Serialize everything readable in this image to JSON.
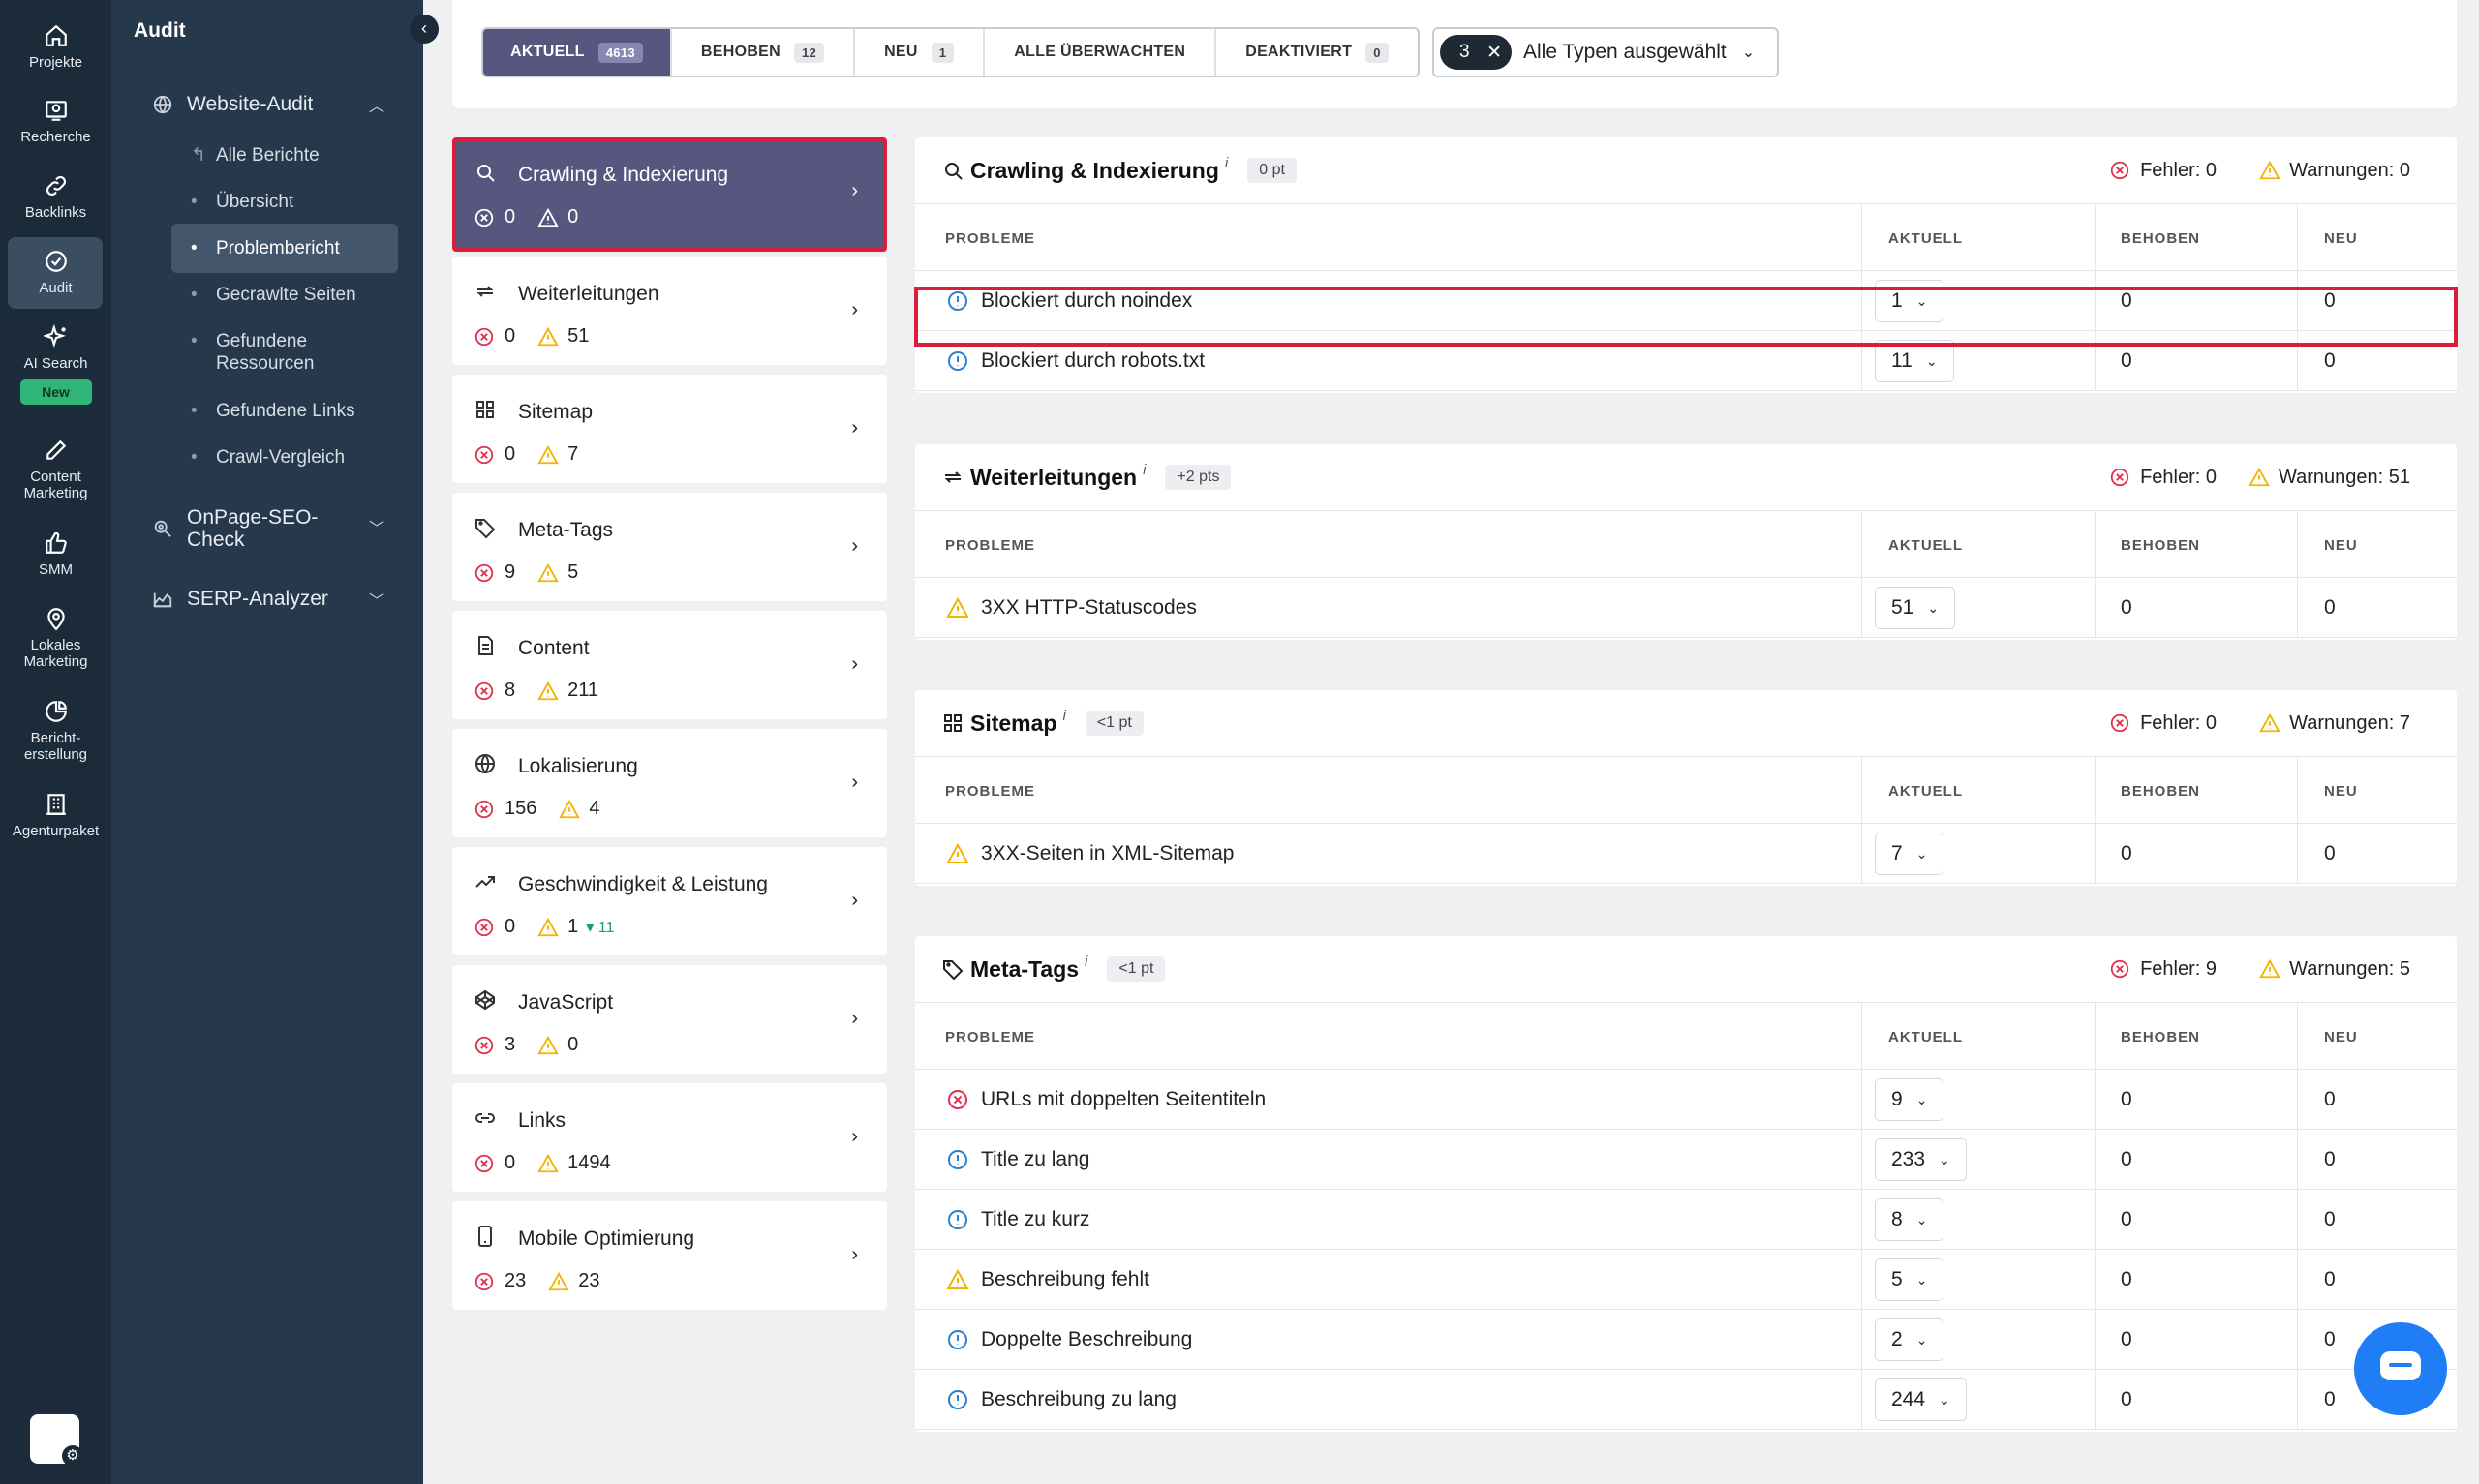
{
  "rail": {
    "items": [
      {
        "label": "Projekte",
        "icon": "home-icon"
      },
      {
        "label": "Recherche",
        "icon": "research-icon"
      },
      {
        "label": "Backlinks",
        "icon": "link-icon"
      },
      {
        "label": "Audit",
        "icon": "check-circle-icon"
      },
      {
        "label": "AI Search",
        "icon": "sparkle-icon"
      },
      {
        "label": "Content",
        "label2": "Marketing",
        "icon": "edit-icon"
      },
      {
        "label": "SMM",
        "icon": "thumbs-up-icon"
      },
      {
        "label": "Lokales",
        "label2": "Marketing",
        "icon": "location-pin-icon"
      },
      {
        "label": "Bericht-",
        "label2": "erstellung",
        "icon": "pie-chart-icon"
      },
      {
        "label": "Agenturpaket",
        "icon": "building-icon"
      }
    ],
    "new_badge": "New",
    "active": "Audit"
  },
  "sidebar": {
    "title": "Audit",
    "website_audit": "Website-Audit",
    "items": [
      {
        "label": "Alle Berichte",
        "bullet": "↰"
      },
      {
        "label": "Übersicht",
        "bullet": "•"
      },
      {
        "label": "Problembericht",
        "bullet": "•"
      },
      {
        "label": "Gecrawlte Seiten",
        "bullet": "•"
      },
      {
        "label": "Gefundene",
        "label2": "Ressourcen",
        "bullet": "•"
      },
      {
        "label": "Gefundene Links",
        "bullet": "•"
      },
      {
        "label": "Crawl-Vergleich",
        "bullet": "•"
      }
    ],
    "onpage": "OnPage-SEO-",
    "onpage2": "Check",
    "serp": "SERP-Analyzer"
  },
  "tabs": [
    {
      "label": "AKTUELL",
      "count": "4613"
    },
    {
      "label": "BEHOBEN",
      "count": "12"
    },
    {
      "label": "NEU",
      "count": "1"
    },
    {
      "label": "ALLE ÜBERWACHTEN",
      "count": ""
    },
    {
      "label": "DEAKTIVIERT",
      "count": "0"
    }
  ],
  "type_filter": {
    "count": "3",
    "clear": "✕",
    "label": "Alle Typen ausgewählt"
  },
  "categories": [
    {
      "name": "Crawling & Indexierung",
      "errors": "0",
      "warnings": "0",
      "icon": "search-icon"
    },
    {
      "name": "Weiterleitungen",
      "errors": "0",
      "warnings": "51",
      "icon": "redirect-icon"
    },
    {
      "name": "Sitemap",
      "errors": "0",
      "warnings": "7",
      "icon": "grid-icon"
    },
    {
      "name": "Meta-Tags",
      "errors": "9",
      "warnings": "5",
      "icon": "tag-icon"
    },
    {
      "name": "Content",
      "errors": "8",
      "warnings": "211",
      "icon": "document-icon"
    },
    {
      "name": "Lokalisierung",
      "errors": "156",
      "warnings": "4",
      "icon": "globe-icon"
    },
    {
      "name": "Geschwindigkeit & Leistung",
      "errors": "0",
      "warnings": "1",
      "trend": "▾ 11",
      "icon": "trend-up-icon"
    },
    {
      "name": "JavaScript",
      "errors": "3",
      "warnings": "0",
      "icon": "codepen-icon"
    },
    {
      "name": "Links",
      "errors": "0",
      "warnings": "1494",
      "icon": "chain-link-icon"
    },
    {
      "name": "Mobile Optimierung",
      "errors": "23",
      "warnings": "23",
      "icon": "mobile-icon"
    }
  ],
  "table_headers": {
    "probleme": "PROBLEME",
    "aktuell": "AKTUELL",
    "behoben": "BEHOBEN",
    "neu": "NEU"
  },
  "info_mark": "i",
  "fehler_label": "Fehler:",
  "warn_label": "Warnungen:",
  "panels": [
    {
      "title": "Crawling & Indexierung",
      "pts": "0 pt",
      "errors": "0",
      "warnings": "0",
      "icon": "search-icon",
      "rows": [
        {
          "type": "info",
          "label": "Blockiert durch noindex",
          "aktuell": "1",
          "behoben": "0",
          "neu": "0"
        },
        {
          "type": "info",
          "label": "Blockiert durch robots.txt",
          "aktuell": "11",
          "behoben": "0",
          "neu": "0"
        }
      ]
    },
    {
      "title": "Weiterleitungen",
      "pts": "+2 pts",
      "errors": "0",
      "warnings": "51",
      "icon": "redirect-icon",
      "rows": [
        {
          "type": "warning",
          "label": "3XX HTTP-Statuscodes",
          "aktuell": "51",
          "behoben": "0",
          "neu": "0"
        }
      ]
    },
    {
      "title": "Sitemap",
      "pts": "<1 pt",
      "errors": "0",
      "warnings": "7",
      "icon": "grid-icon",
      "rows": [
        {
          "type": "warning",
          "label": "3XX-Seiten in XML-Sitemap",
          "aktuell": "7",
          "behoben": "0",
          "neu": "0"
        }
      ]
    },
    {
      "title": "Meta-Tags",
      "pts": "<1 pt",
      "errors": "9",
      "warnings": "5",
      "icon": "tag-icon",
      "rows": [
        {
          "type": "error",
          "label": "URLs mit doppelten Seitentiteln",
          "aktuell": "9",
          "behoben": "0",
          "neu": "0"
        },
        {
          "type": "info",
          "label": "Title zu lang",
          "aktuell": "233",
          "behoben": "0",
          "neu": "0"
        },
        {
          "type": "info",
          "label": "Title zu kurz",
          "aktuell": "8",
          "behoben": "0",
          "neu": "0"
        },
        {
          "type": "warning",
          "label": "Beschreibung fehlt",
          "aktuell": "5",
          "behoben": "0",
          "neu": "0"
        },
        {
          "type": "info",
          "label": "Doppelte Beschreibung",
          "aktuell": "2",
          "behoben": "0",
          "neu": "0"
        },
        {
          "type": "info",
          "label": "Beschreibung zu lang",
          "aktuell": "244",
          "behoben": "0",
          "neu": "0"
        }
      ]
    }
  ],
  "colors": {
    "active_tab": "#58557f",
    "error": "#e0334f",
    "warning": "#f2b400",
    "info": "#2f7fd1",
    "highlight": "#d91e3c",
    "chat": "#1f7ef5"
  }
}
